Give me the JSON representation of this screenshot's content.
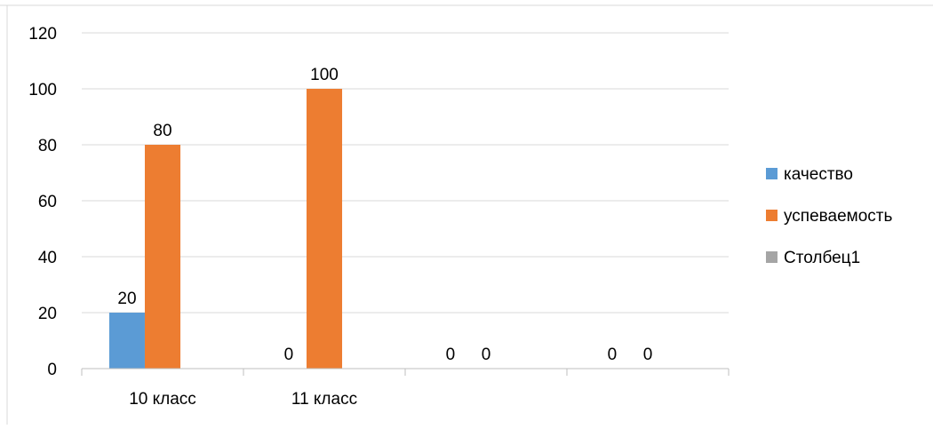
{
  "chart_data": {
    "type": "bar",
    "title": "",
    "xlabel": "",
    "ylabel": "",
    "categories": [
      "10 класс",
      "11 класс",
      "",
      ""
    ],
    "series": [
      {
        "name": "качество",
        "color": "#5B9BD5",
        "values": [
          20,
          0,
          0,
          0
        ]
      },
      {
        "name": "успеваемость",
        "color": "#ED7D31",
        "values": [
          80,
          100,
          0,
          0
        ]
      },
      {
        "name": "Столбец1",
        "color": "#A5A5A5",
        "values": [
          null,
          null,
          null,
          null
        ]
      }
    ],
    "data_labels": [
      [
        "20",
        "0",
        "0",
        "0"
      ],
      [
        "80",
        "100",
        "0",
        "0"
      ],
      [
        null,
        null,
        null,
        null
      ]
    ],
    "ylim": [
      0,
      120
    ],
    "yticks": [
      "0",
      "20",
      "40",
      "60",
      "80",
      "100",
      "120"
    ],
    "grid": true,
    "legend_position": "right",
    "gridline_color": "#D9D9D9",
    "axis_color": "#BFBFBF"
  }
}
